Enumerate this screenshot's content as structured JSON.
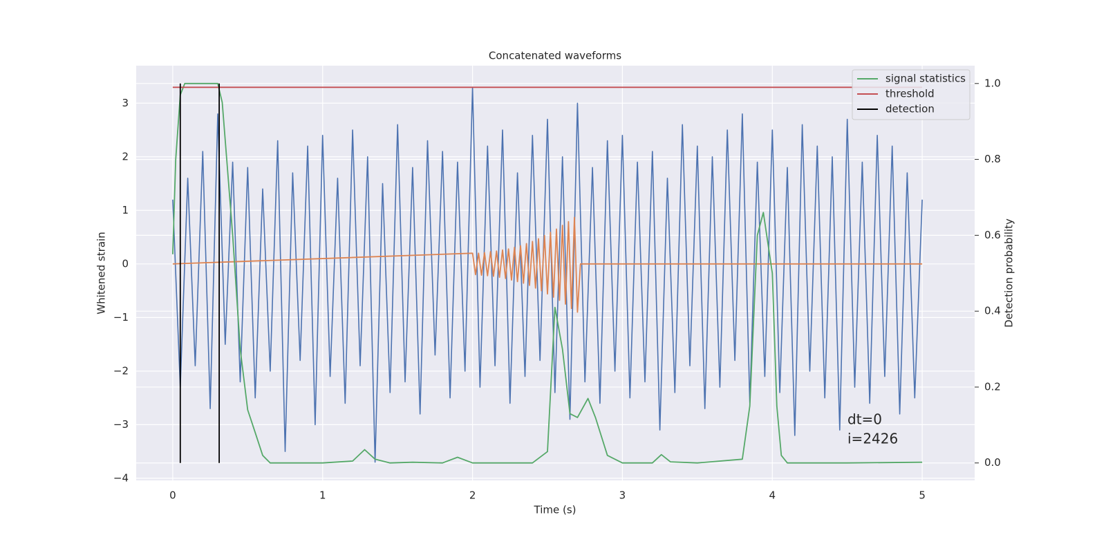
{
  "chart_data": {
    "type": "line",
    "title": "Concatenated waveforms",
    "xlabel": "Time (s)",
    "ylabel": "Whitened strain",
    "y2label": "Detection probability",
    "xlim": [
      -0.244,
      5.35
    ],
    "ylim": [
      -4.04,
      3.7
    ],
    "y2lim": [
      -0.046,
      1.047
    ],
    "xticks": [
      0,
      1,
      2,
      3,
      4,
      5
    ],
    "yticks": [
      {
        "value": -4,
        "label": "−4"
      },
      {
        "value": -3,
        "label": "−3"
      },
      {
        "value": -2,
        "label": "−2"
      },
      {
        "value": -1,
        "label": "−1"
      },
      0,
      1,
      2,
      3
    ],
    "y2ticks": [
      {
        "value": 0,
        "label": "0.0"
      },
      {
        "value": 0.2,
        "label": "0.2"
      },
      {
        "value": 0.4,
        "label": "0.4"
      },
      {
        "value": 0.6,
        "label": "0.6"
      },
      {
        "value": 0.8,
        "label": "0.8"
      },
      {
        "value": 1,
        "label": "1.0"
      }
    ],
    "grid": true,
    "legend": "upper right",
    "annotations": [
      "dt=0",
      "i=2426"
    ],
    "series": [
      {
        "color": "#4c72b0",
        "x": [
          0,
          0.05,
          0.1,
          0.15,
          0.2,
          0.25,
          0.3,
          0.35,
          0.4,
          0.45,
          0.5,
          0.55,
          0.6,
          0.65,
          0.7,
          0.75,
          0.8,
          0.85,
          0.9,
          0.95,
          1,
          1.05,
          1.1,
          1.15,
          1.2,
          1.25,
          1.3,
          1.35,
          1.4,
          1.45,
          1.5,
          1.55,
          1.6,
          1.65,
          1.7,
          1.75,
          1.8,
          1.85,
          1.9,
          1.95,
          2,
          2.05,
          2.1,
          2.15,
          2.2,
          2.25,
          2.3,
          2.35,
          2.4,
          2.45,
          2.5,
          2.55,
          2.6,
          2.65,
          2.7,
          2.75,
          2.8,
          2.85,
          2.9,
          2.95,
          3,
          3.05,
          3.1,
          3.15,
          3.2,
          3.25,
          3.3,
          3.35,
          3.4,
          3.45,
          3.5,
          3.55,
          3.6,
          3.65,
          3.7,
          3.75,
          3.8,
          3.85,
          3.9,
          3.95,
          4,
          4.05,
          4.1,
          4.15,
          4.2,
          4.25,
          4.3,
          4.35,
          4.4,
          4.45,
          4.5,
          4.55,
          4.6,
          4.65,
          4.7,
          4.75,
          4.8,
          4.85,
          4.9,
          4.95,
          5
        ],
        "values": [
          1.2,
          -2.3,
          1.6,
          -1.9,
          2.1,
          -2.7,
          2.8,
          -1.5,
          1.9,
          -2.2,
          1.8,
          -2.5,
          1.4,
          -2.0,
          2.3,
          -3.5,
          1.7,
          -1.8,
          2.2,
          -3.0,
          2.4,
          -2.1,
          1.6,
          -2.6,
          2.5,
          -1.9,
          2.0,
          -3.7,
          1.5,
          -2.4,
          2.6,
          -2.2,
          1.8,
          -2.8,
          2.3,
          -1.7,
          2.1,
          -2.5,
          1.9,
          -2.0,
          3.3,
          -2.3,
          2.2,
          -1.9,
          2.5,
          -2.6,
          1.7,
          -2.1,
          2.4,
          -1.8,
          2.7,
          -2.4,
          2.0,
          -2.9,
          3.0,
          -2.2,
          1.8,
          -2.6,
          2.3,
          -2.0,
          2.4,
          -2.5,
          1.9,
          -2.2,
          2.1,
          -3.1,
          1.6,
          -2.4,
          2.6,
          -1.9,
          2.2,
          -2.7,
          2.0,
          -2.3,
          2.5,
          -1.8,
          2.8,
          -2.6,
          1.9,
          -2.1,
          2.5,
          -2.4,
          1.8,
          -3.2,
          2.6,
          -2.0,
          2.2,
          -2.5,
          2.0,
          -3.1,
          2.7,
          -2.3,
          1.9,
          -2.6,
          2.4,
          -2.1,
          2.2,
          -2.8,
          1.7,
          -2.5,
          1.2
        ]
      },
      {
        "color": "#dd8452",
        "x": [
          0,
          2,
          2.02,
          2.04,
          2.06,
          2.08,
          2.1,
          2.12,
          2.14,
          2.16,
          2.18,
          2.2,
          2.22,
          2.24,
          2.26,
          2.28,
          2.3,
          2.32,
          2.34,
          2.36,
          2.38,
          2.4,
          2.42,
          2.44,
          2.46,
          2.48,
          2.5,
          2.52,
          2.54,
          2.56,
          2.58,
          2.6,
          2.62,
          2.64,
          2.66,
          2.68,
          2.7,
          2.72,
          5
        ],
        "values": [
          0,
          0.2,
          -0.2,
          0.2,
          -0.21,
          0.21,
          -0.22,
          0.23,
          -0.23,
          0.24,
          -0.25,
          0.26,
          -0.27,
          0.28,
          -0.3,
          0.31,
          -0.33,
          0.34,
          -0.36,
          0.38,
          -0.4,
          0.42,
          -0.45,
          0.47,
          -0.5,
          0.53,
          -0.56,
          0.59,
          -0.62,
          0.65,
          -0.68,
          0.72,
          -0.75,
          0.79,
          -0.83,
          0.87,
          -0.9,
          0,
          0
        ]
      },
      {
        "name": "signal statistics",
        "color": "#55a868",
        "axis": "y2",
        "x": [
          0,
          0.02,
          0.05,
          0.08,
          0.1,
          0.2,
          0.3,
          0.33,
          0.36,
          0.4,
          0.45,
          0.5,
          0.55,
          0.6,
          0.65,
          0.7,
          1.0,
          1.2,
          1.28,
          1.35,
          1.45,
          1.6,
          1.8,
          1.9,
          2.0,
          2.4,
          2.5,
          2.55,
          2.6,
          2.65,
          2.7,
          2.77,
          2.82,
          2.9,
          3.0,
          3.2,
          3.26,
          3.32,
          3.5,
          3.8,
          3.85,
          3.9,
          3.94,
          4.0,
          4.03,
          4.06,
          4.1,
          4.5,
          5.0
        ],
        "values": [
          0.55,
          0.8,
          0.97,
          1.0,
          1.0,
          1.0,
          1.0,
          0.95,
          0.8,
          0.6,
          0.3,
          0.14,
          0.08,
          0.02,
          0.0,
          0.0,
          0.0,
          0.005,
          0.035,
          0.01,
          0.0,
          0.002,
          0.0,
          0.015,
          0.0,
          0.0,
          0.03,
          0.41,
          0.3,
          0.13,
          0.12,
          0.17,
          0.12,
          0.02,
          0.0,
          0.0,
          0.022,
          0.003,
          0.0,
          0.01,
          0.15,
          0.6,
          0.66,
          0.5,
          0.15,
          0.02,
          0.0,
          0.0,
          0.002
        ]
      },
      {
        "name": "threshold",
        "color": "#c44e52",
        "axis": "y2",
        "x": [
          0,
          5
        ],
        "values": [
          0.99,
          0.99
        ]
      },
      {
        "name": "detection",
        "color": "#000000",
        "axis": "y2",
        "x": [
          0.05,
          0.05,
          null,
          0.31,
          0.31
        ],
        "values": [
          0,
          1,
          null,
          0,
          1
        ]
      }
    ]
  }
}
